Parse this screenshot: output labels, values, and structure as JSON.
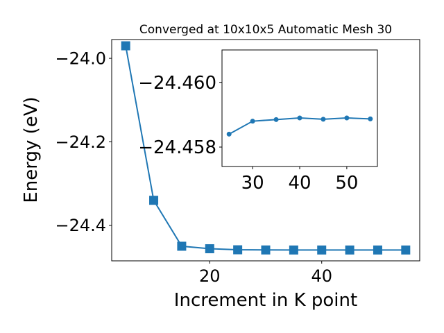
{
  "chart_data": [
    {
      "type": "line",
      "title": "Converged at 10x10x5 Automatic Mesh 30",
      "xlabel": "Increment in K point",
      "ylabel": "Energy (eV)",
      "xlim": [
        2.5,
        57.5
      ],
      "ylim": [
        -24.485,
        -23.955
      ],
      "xticks": [
        20,
        40
      ],
      "xtick_labels": [
        "20",
        "40"
      ],
      "yticks": [
        -24.0,
        -24.2,
        -24.4
      ],
      "ytick_labels": [
        "−24.0",
        "−24.2",
        "−24.4"
      ],
      "series": [
        {
          "color": "#1f77b4",
          "marker": "square",
          "x": [
            5,
            10,
            15,
            20,
            25,
            30,
            35,
            40,
            45,
            50,
            55
          ],
          "y": [
            -23.97,
            -24.34,
            -24.45,
            -24.456,
            -24.4585,
            -24.4589,
            -24.459,
            -24.459,
            -24.459,
            -24.459,
            -24.459
          ]
        }
      ]
    },
    {
      "type": "line",
      "title": "",
      "xlabel": "",
      "ylabel": "",
      "xlim": [
        23.5,
        56.5
      ],
      "ylim": [
        -24.4574,
        -24.461
      ],
      "xticks": [
        30,
        40,
        50
      ],
      "xtick_labels": [
        "30",
        "40",
        "50"
      ],
      "yticks": [
        -24.46,
        -24.458
      ],
      "ytick_labels": [
        "−24.460",
        "−24.458"
      ],
      "series": [
        {
          "color": "#1f77b4",
          "marker": "circle",
          "x": [
            25,
            30,
            35,
            40,
            45,
            50,
            55
          ],
          "y": [
            -24.4584,
            -24.4588,
            -24.45885,
            -24.4589,
            -24.45886,
            -24.4589,
            -24.45887
          ]
        }
      ]
    }
  ]
}
